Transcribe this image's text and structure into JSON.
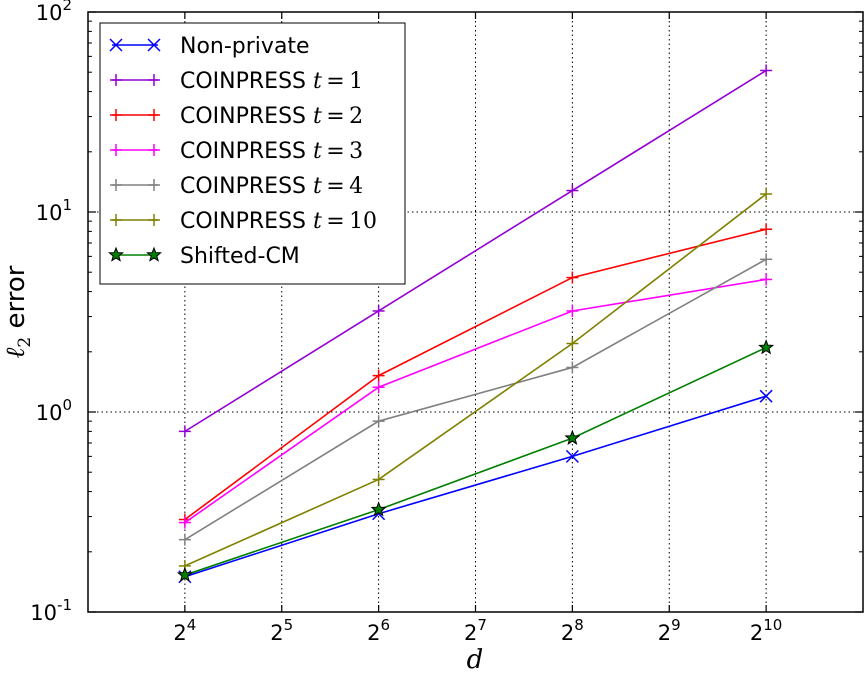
{
  "chart_data": {
    "type": "line",
    "xlabel": "d",
    "ylabel": "ℓ2 error",
    "x_scale": "log2",
    "y_scale": "log10",
    "x": [
      16,
      64,
      256,
      1024
    ],
    "xlim": [
      8,
      2048
    ],
    "ylim": [
      0.1,
      100
    ],
    "x_ticks": [
      {
        "base": "2",
        "exp": "4"
      },
      {
        "base": "2",
        "exp": "5"
      },
      {
        "base": "2",
        "exp": "6"
      },
      {
        "base": "2",
        "exp": "7"
      },
      {
        "base": "2",
        "exp": "8"
      },
      {
        "base": "2",
        "exp": "9"
      },
      {
        "base": "2",
        "exp": "10"
      }
    ],
    "y_ticks": [
      {
        "base": "10",
        "exp": "-1"
      },
      {
        "base": "10",
        "exp": "0"
      },
      {
        "base": "10",
        "exp": "1"
      },
      {
        "base": "10",
        "exp": "2"
      }
    ],
    "grid": true,
    "legend_position": "top-left",
    "series": [
      {
        "name": "Non-private",
        "color": "#0000ff",
        "marker": "x",
        "values": [
          0.15,
          0.31,
          0.6,
          1.2
        ]
      },
      {
        "name": "COINPRESS t = 1",
        "color": "#9400d3",
        "marker": "+",
        "values": [
          0.8,
          3.2,
          12.8,
          51.0
        ]
      },
      {
        "name": "COINPRESS t = 2",
        "color": "#ff0000",
        "marker": "+",
        "values": [
          0.29,
          1.52,
          4.7,
          8.2
        ]
      },
      {
        "name": "COINPRESS t = 3",
        "color": "#ff00ff",
        "marker": "+",
        "values": [
          0.28,
          1.33,
          3.2,
          4.6
        ]
      },
      {
        "name": "COINPRESS t = 4",
        "color": "#808080",
        "marker": "+",
        "values": [
          0.23,
          0.9,
          1.67,
          5.8
        ]
      },
      {
        "name": "COINPRESS t = 10",
        "color": "#808000",
        "marker": "+",
        "values": [
          0.17,
          0.46,
          2.2,
          12.3
        ]
      },
      {
        "name": "Shifted-CM",
        "color": "#008000",
        "marker": "star",
        "values": [
          0.153,
          0.325,
          0.74,
          2.1
        ]
      }
    ]
  }
}
